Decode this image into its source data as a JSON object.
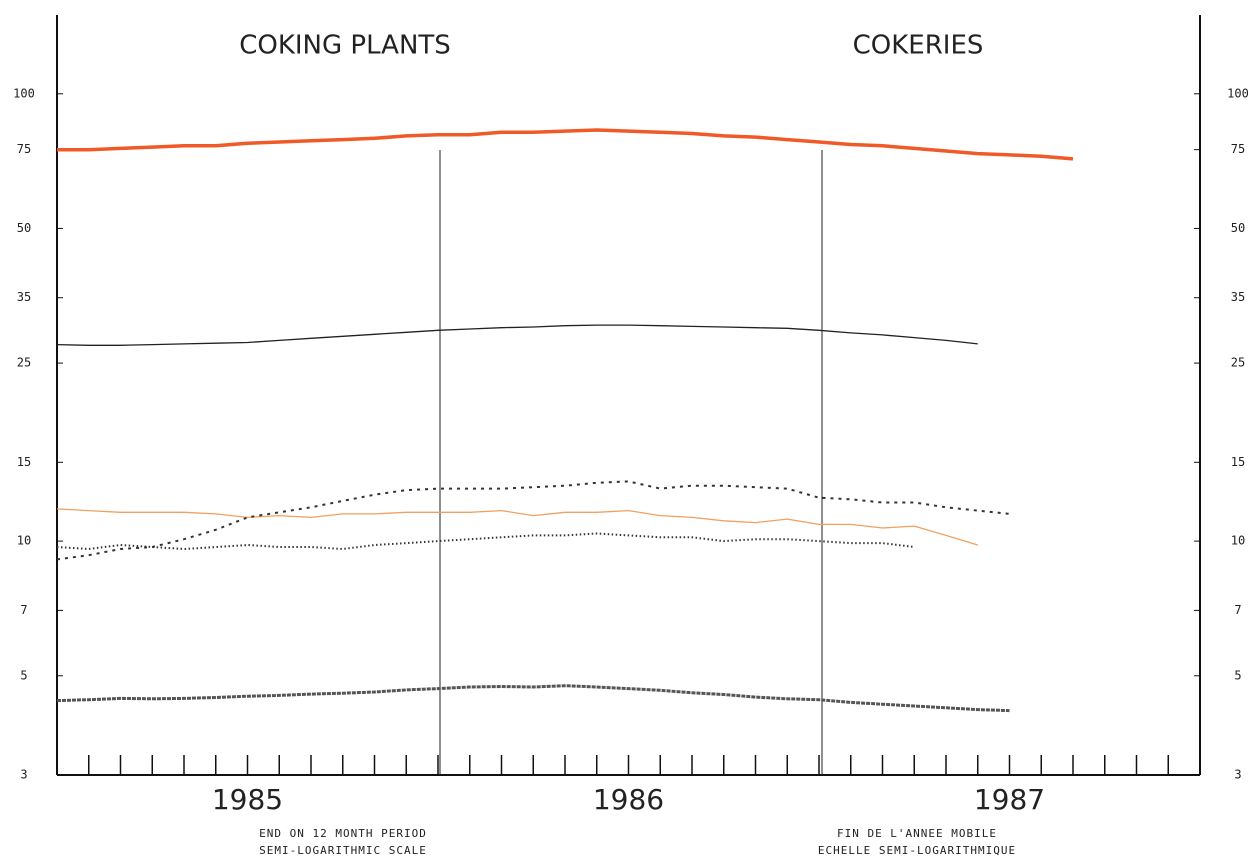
{
  "chart_data": {
    "type": "line",
    "title": "COKING PLANTS",
    "title_right": "COKERIES",
    "notes_left": [
      "END ON 12 MONTH PERIOD",
      "SEMI-LOGARITHMIC SCALE"
    ],
    "notes_right": [
      "FIN DE L'ANNEE MOBILE",
      "ECHELLE SEMI-LOGARITHMIQUE"
    ],
    "categories": [
      null,
      null,
      null,
      null,
      null,
      null,
      "1985",
      null,
      null,
      null,
      null,
      null,
      null,
      null,
      null,
      null,
      null,
      null,
      "1986",
      null,
      null,
      null,
      null,
      null,
      null,
      null,
      null,
      null,
      null,
      null,
      "1987",
      null,
      null,
      null,
      null,
      null,
      null
    ],
    "ylim": [
      3,
      150
    ],
    "yticks": [
      3,
      5,
      7,
      10,
      15,
      25,
      35,
      50,
      75,
      100
    ],
    "log_y": true,
    "series": [
      {
        "color": "#f05a28",
        "style": "solid",
        "width": 3.5,
        "values": [
          75,
          75,
          75.5,
          76,
          76.5,
          76.5,
          77.5,
          78,
          78.5,
          79,
          79.5,
          80.5,
          81,
          81,
          82,
          82,
          82.5,
          83,
          82.5,
          82,
          81.5,
          80.5,
          80,
          79,
          78,
          77,
          76.5,
          75.5,
          74.5,
          73.5,
          73,
          72.5,
          71.5,
          null,
          null,
          null,
          null
        ]
      },
      {
        "color": "#222222",
        "style": "solid",
        "width": 1.3,
        "values": [
          27.5,
          27.4,
          27.4,
          27.5,
          27.6,
          27.7,
          27.8,
          28.1,
          28.4,
          28.7,
          29,
          29.3,
          29.6,
          29.8,
          30,
          30.1,
          30.3,
          30.4,
          30.4,
          30.3,
          30.2,
          30.1,
          30,
          29.9,
          29.6,
          29.2,
          28.9,
          28.5,
          28.1,
          27.6,
          null,
          null,
          null,
          null,
          null,
          null,
          null
        ]
      },
      {
        "color": "#f0a060",
        "style": "solid",
        "width": 1.3,
        "values": [
          11.8,
          11.7,
          11.6,
          11.6,
          11.6,
          11.5,
          11.3,
          11.4,
          11.3,
          11.5,
          11.5,
          11.6,
          11.6,
          11.6,
          11.7,
          11.4,
          11.6,
          11.6,
          11.7,
          11.4,
          11.3,
          11.1,
          11,
          11.2,
          10.9,
          10.9,
          10.7,
          10.8,
          10.3,
          9.8,
          null,
          null,
          null,
          null,
          null,
          null,
          null
        ]
      },
      {
        "color": "#333333",
        "style": "plus",
        "width": 2,
        "values": [
          9.1,
          9.3,
          9.6,
          9.7,
          10.1,
          10.6,
          11.3,
          11.6,
          11.9,
          12.3,
          12.7,
          13,
          13.1,
          13.1,
          13.1,
          13.2,
          13.3,
          13.5,
          13.6,
          13.1,
          13.3,
          13.3,
          13.2,
          13.1,
          12.5,
          12.4,
          12.2,
          12.2,
          11.9,
          11.7,
          11.5,
          null,
          null,
          null,
          null,
          null,
          null
        ]
      },
      {
        "color": "#333333",
        "style": "dotted",
        "width": 2,
        "values": [
          9.7,
          9.6,
          9.8,
          9.7,
          9.6,
          9.7,
          9.8,
          9.7,
          9.7,
          9.6,
          9.8,
          9.9,
          10,
          10.1,
          10.2,
          10.3,
          10.3,
          10.4,
          10.3,
          10.2,
          10.2,
          10,
          10.1,
          10.1,
          10,
          9.9,
          9.9,
          9.7,
          null,
          null,
          null,
          null,
          null,
          null,
          null,
          null,
          null
        ]
      },
      {
        "color": "#555555",
        "style": "dashed",
        "width": 3,
        "values": [
          4.4,
          4.42,
          4.45,
          4.44,
          4.45,
          4.47,
          4.5,
          4.52,
          4.55,
          4.57,
          4.6,
          4.65,
          4.68,
          4.72,
          4.73,
          4.72,
          4.75,
          4.72,
          4.68,
          4.64,
          4.58,
          4.54,
          4.48,
          4.44,
          4.42,
          4.36,
          4.32,
          4.28,
          4.24,
          4.2,
          4.18,
          null,
          null,
          null,
          null,
          null,
          null
        ]
      }
    ]
  }
}
